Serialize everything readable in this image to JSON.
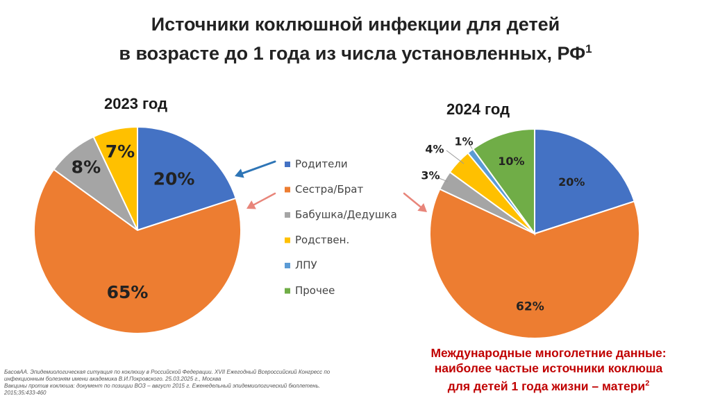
{
  "title": {
    "line1": "Источники коклюшной инфекции для детей",
    "line2": "в возрасте до 1 года из числа установленных, РФ",
    "sup": "1"
  },
  "chart_data": [
    {
      "type": "pie",
      "title": "2023 год",
      "categories": [
        "Родители",
        "Сестра/Брат",
        "Бабушка/Дедушка",
        "Родствен."
      ],
      "values": [
        20,
        65,
        8,
        7
      ],
      "labels": [
        "20%",
        "65%",
        "8%",
        "7%"
      ],
      "colors": [
        "#4472C4",
        "#ED7D31",
        "#A5A5A5",
        "#FFC000"
      ]
    },
    {
      "type": "pie",
      "title": "2024 год",
      "categories": [
        "Родители",
        "Сестра/Брат",
        "Бабушка/Дедушка",
        "Родствен.",
        "ЛПУ",
        "Прочее"
      ],
      "values": [
        20,
        62,
        3,
        4,
        1,
        10
      ],
      "labels": [
        "20%",
        "62%",
        "3%",
        "4%",
        "1%",
        "10%"
      ],
      "colors": [
        "#4472C4",
        "#ED7D31",
        "#A5A5A5",
        "#FFC000",
        "#5B9BD5",
        "#70AD47"
      ]
    }
  ],
  "legend": {
    "items": [
      {
        "label": "Родители",
        "color": "#4472C4"
      },
      {
        "label": "Сестра/Брат",
        "color": "#ED7D31"
      },
      {
        "label": "Бабушка/Дедушка",
        "color": "#A5A5A5"
      },
      {
        "label": "Родствен.",
        "color": "#FFC000"
      },
      {
        "label": "ЛПУ",
        "color": "#5B9BD5"
      },
      {
        "label": "Прочее",
        "color": "#70AD47"
      }
    ]
  },
  "arrow_colors": {
    "left_primary": "#2E75B6",
    "secondary": "#E8857A"
  },
  "note": {
    "line1": "Международные многолетние данные:",
    "line2": "наиболее частые источники коклюша",
    "line3": "для детей 1 года жизни – матери",
    "sup": "2"
  },
  "refs": {
    "line1": "БасовАА. Эпидемиологическая ситуация по коклюшу в Российской Федерации. XVII Ежегодный Всероссийский Конгресс по",
    "line2": "инфекционным болезням имени академика В.И.Покровского. 25.03.2025 г., Москва",
    "line3": " Вакцины против коклюша: документ по позиции ВОЗ – август 2015 г. Еженедельный эпидемиологический бюллетень.",
    "line4": "2015;35:433-460"
  }
}
